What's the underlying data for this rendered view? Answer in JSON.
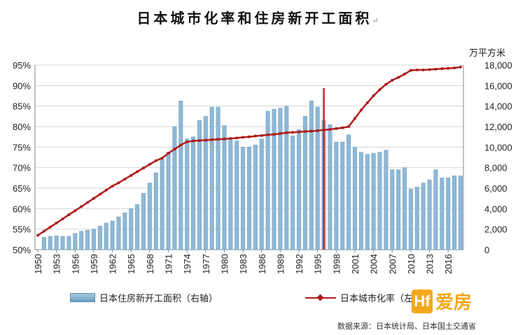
{
  "title": "日本城市化率和住房新开工面积",
  "title_mark": "↵",
  "unit_right": "万平方米",
  "legend": {
    "bar": "日本住房新开工面积（右轴）",
    "line": "日本城市化率（左轴）"
  },
  "source": "数据来源：日本统计局、日本国土交通省",
  "logo": {
    "mark": "Hf",
    "word": "爱房"
  },
  "colors": {
    "bar": "#8fb8d6",
    "line": "#b01c1c",
    "divider": "#c0272d"
  },
  "chart_data": {
    "type": "bar",
    "title": "日本城市化率和住房新开工面积",
    "x": [
      1950,
      1951,
      1952,
      1953,
      1954,
      1955,
      1956,
      1957,
      1958,
      1959,
      1960,
      1961,
      1962,
      1963,
      1964,
      1965,
      1966,
      1967,
      1968,
      1969,
      1970,
      1971,
      1972,
      1973,
      1974,
      1975,
      1976,
      1977,
      1978,
      1979,
      1980,
      1981,
      1982,
      1983,
      1984,
      1985,
      1986,
      1987,
      1988,
      1989,
      1990,
      1991,
      1992,
      1993,
      1994,
      1995,
      1996,
      1997,
      1998,
      1999,
      2000,
      2001,
      2002,
      2003,
      2004,
      2005,
      2006,
      2007,
      2008,
      2009,
      2010,
      2011,
      2012,
      2013,
      2014,
      2015,
      2016,
      2017,
      2018
    ],
    "x_tick_labels": [
      "1950",
      "1953",
      "1956",
      "1959",
      "1962",
      "1965",
      "1968",
      "1971",
      "1974",
      "1977",
      "1980",
      "1983",
      "1986",
      "1989",
      "1992",
      "1995",
      "1998",
      "2001",
      "2004",
      "2007",
      "2010",
      "2013",
      "2016"
    ],
    "series": [
      {
        "name": "日本住房新开工面积（右轴）",
        "type": "bar",
        "axis": "right",
        "values": [
          null,
          1200,
          1300,
          1350,
          1300,
          1300,
          1600,
          1800,
          1900,
          2000,
          2300,
          2600,
          2800,
          3200,
          3600,
          4000,
          4400,
          5500,
          6500,
          7500,
          8800,
          9500,
          12000,
          14500,
          10800,
          11000,
          12600,
          13000,
          13900,
          13900,
          12100,
          10700,
          10600,
          10000,
          10000,
          10200,
          10800,
          13500,
          13700,
          13800,
          14000,
          11100,
          11700,
          13000,
          14500,
          13900,
          12600,
          12200,
          10500,
          10500,
          11200,
          10000,
          9500,
          9300,
          9400,
          9500,
          9700,
          7800,
          7800,
          8000,
          5900,
          6100,
          6500,
          6800,
          7800,
          7000,
          7000,
          7200,
          7200
        ]
      },
      {
        "name": "日本城市化率（左轴）",
        "type": "line",
        "axis": "left",
        "values": [
          53.5,
          54.5,
          55.5,
          56.5,
          57.5,
          58.5,
          59.5,
          60.5,
          61.5,
          62.5,
          63.5,
          64.5,
          65.5,
          66.3,
          67.2,
          68.1,
          69,
          69.9,
          70.8,
          71.7,
          72.3,
          73.5,
          74.5,
          75.5,
          76.3,
          76.5,
          76.6,
          76.7,
          76.8,
          76.9,
          77,
          77.1,
          77.2,
          77.4,
          77.5,
          77.7,
          77.8,
          78,
          78.1,
          78.3,
          78.5,
          78.6,
          78.7,
          78.8,
          78.9,
          79,
          79.2,
          79.3,
          79.5,
          79.7,
          80,
          82,
          84,
          85.8,
          87.5,
          89,
          90.3,
          91.3,
          92,
          92.8,
          93.7,
          93.8,
          93.8,
          93.9,
          94,
          94.1,
          94.2,
          94.3,
          94.5
        ]
      }
    ],
    "y_left": {
      "min": 50,
      "max": 95,
      "ticks": [
        "50%",
        "55%",
        "60%",
        "65%",
        "70%",
        "75%",
        "80%",
        "85%",
        "90%",
        "95%"
      ]
    },
    "y_right": {
      "min": 0,
      "max": 18000,
      "label": "万平方米",
      "ticks": [
        "0",
        "2,000",
        "4,000",
        "6,000",
        "8,000",
        "10,000",
        "12,000",
        "14,000",
        "16,000",
        "18,000"
      ]
    },
    "marker_year": 1996,
    "grid": true,
    "legend_position": "bottom"
  }
}
